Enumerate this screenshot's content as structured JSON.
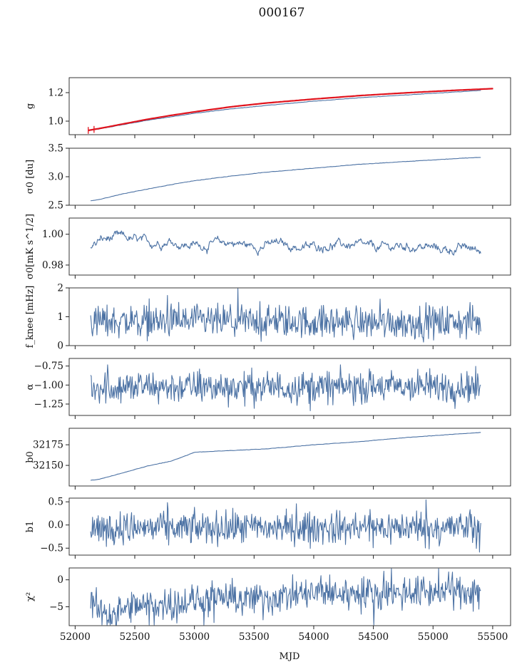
{
  "chart_data": {
    "type": "line",
    "title": "000167",
    "xlabel": "MJD",
    "xlim": [
      51950,
      55650
    ],
    "xticks": [
      52000,
      52500,
      53000,
      53500,
      54000,
      54500,
      55000,
      55500
    ],
    "line_color": "#4c72a4",
    "fit_color": "#e0141e",
    "grid": false,
    "panels": [
      {
        "id": "g",
        "ylabel": "g",
        "ylim": [
          0.905,
          1.305
        ],
        "yticks": [
          1.0,
          1.2
        ],
        "ytick_labels": [
          "1.0",
          "1.2"
        ],
        "noise": "trend",
        "series": [
          {
            "x": [
              52120,
              52200,
              52400,
              52600,
              52800,
              53000,
              53300,
              53600,
              54000,
              54400,
              54800,
              55200,
              55400
            ],
            "y": [
              0.935,
              0.945,
              0.975,
              1.005,
              1.03,
              1.055,
              1.085,
              1.11,
              1.14,
              1.165,
              1.185,
              1.205,
              1.215
            ]
          }
        ],
        "fit": {
          "x": [
            52110,
            52200,
            52400,
            52600,
            52800,
            53000,
            53300,
            53600,
            54000,
            54400,
            54800,
            55200,
            55500
          ],
          "y": [
            0.935,
            0.948,
            0.98,
            1.012,
            1.04,
            1.065,
            1.1,
            1.127,
            1.155,
            1.18,
            1.2,
            1.217,
            1.228
          ]
        }
      },
      {
        "id": "sigma0-du",
        "ylabel": "σ0 [du]",
        "ylim": [
          2.5,
          3.5
        ],
        "yticks": [
          2.5,
          3.0,
          3.5
        ],
        "ytick_labels": [
          "2.5",
          "3.0",
          "3.5"
        ],
        "noise": "trend",
        "series": [
          {
            "x": [
              52130,
              52200,
              52400,
              52600,
              52800,
              53000,
              53300,
              53600,
              54000,
              54400,
              54800,
              55200,
              55400
            ],
            "y": [
              2.58,
              2.6,
              2.7,
              2.78,
              2.86,
              2.93,
              3.01,
              3.08,
              3.15,
              3.22,
              3.27,
              3.32,
              3.34
            ]
          }
        ]
      },
      {
        "id": "sigma0-mks",
        "ylabel": "σ0[mK s^1/2]",
        "ylim": [
          0.9735,
          1.0105
        ],
        "yticks": [
          0.98,
          1.0
        ],
        "ytick_labels": [
          "0.98",
          "1.00"
        ],
        "noise": "wavy",
        "series": [
          {
            "x": [
              52130,
              52200,
              52400,
              52600,
              52800,
              52900,
              53100,
              53300,
              53500,
              53700,
              53900,
              54100,
              54300,
              54500,
              54700,
              54900,
              55100,
              55300,
              55400
            ],
            "y": [
              0.991,
              0.996,
              0.998,
              0.994,
              0.996,
              0.993,
              0.993,
              0.995,
              0.992,
              0.994,
              0.991,
              0.993,
              0.993,
              0.991,
              0.992,
              0.992,
              0.99,
              0.991,
              0.989
            ]
          }
        ]
      },
      {
        "id": "fknee",
        "ylabel": "f_knee [mHz]",
        "ylim": [
          0,
          2
        ],
        "yticks": [
          0,
          1,
          2
        ],
        "ytick_labels": [
          "0",
          "1",
          "2"
        ],
        "noise": "spiky",
        "series": [
          {
            "x": [
              52130,
              55400
            ],
            "y": [
              0.85,
              0.8
            ]
          }
        ]
      },
      {
        "id": "alpha",
        "ylabel": "α",
        "ylim": [
          -1.4,
          -0.65
        ],
        "yticks": [
          -1.25,
          -1.0,
          -0.75
        ],
        "ytick_labels": [
          "−1.25",
          "−1.00",
          "−0.75"
        ],
        "noise": "spiky",
        "series": [
          {
            "x": [
              52130,
              55400
            ],
            "y": [
              -1.03,
              -1.02
            ]
          }
        ]
      },
      {
        "id": "b0",
        "ylabel": "b0",
        "ylim": [
          32125,
          32195
        ],
        "yticks": [
          32150,
          32175
        ],
        "ytick_labels": [
          "32150",
          "32175"
        ],
        "noise": "trend",
        "series": [
          {
            "x": [
              52130,
              52200,
              52400,
              52600,
              52800,
              52950,
              53000,
              53300,
              53600,
              54000,
              54400,
              54800,
              55200,
              55400
            ],
            "y": [
              32132,
              32133,
              32141,
              32149,
              32155,
              32163,
              32166,
              32168,
              32170,
              32175,
              32179,
              32184,
              32188,
              32190
            ]
          }
        ]
      },
      {
        "id": "b1",
        "ylabel": "b1",
        "ylim": [
          -0.65,
          0.58
        ],
        "yticks": [
          -0.5,
          0.0,
          0.5
        ],
        "ytick_labels": [
          "−0.5",
          "0.0",
          "0.5"
        ],
        "noise": "spiky",
        "series": [
          {
            "x": [
              52130,
              55400
            ],
            "y": [
              -0.07,
              -0.05
            ]
          }
        ]
      },
      {
        "id": "chi2",
        "ylabel": "χ²",
        "ylim": [
          -8.5,
          2.2
        ],
        "yticks": [
          -5,
          0
        ],
        "ytick_labels": [
          "−5",
          "0"
        ],
        "noise": "spiky",
        "series": [
          {
            "x": [
              52130,
              52300,
              52500,
              52800,
              53000,
              53300,
              53600,
              54000,
              54400,
              54800,
              55200,
              55400
            ],
            "y": [
              -4.5,
              -6.5,
              -5.0,
              -4.5,
              -4.0,
              -3.5,
              -3.5,
              -2.5,
              -2.5,
              -2.3,
              -2.0,
              -2.0
            ]
          }
        ]
      }
    ]
  }
}
